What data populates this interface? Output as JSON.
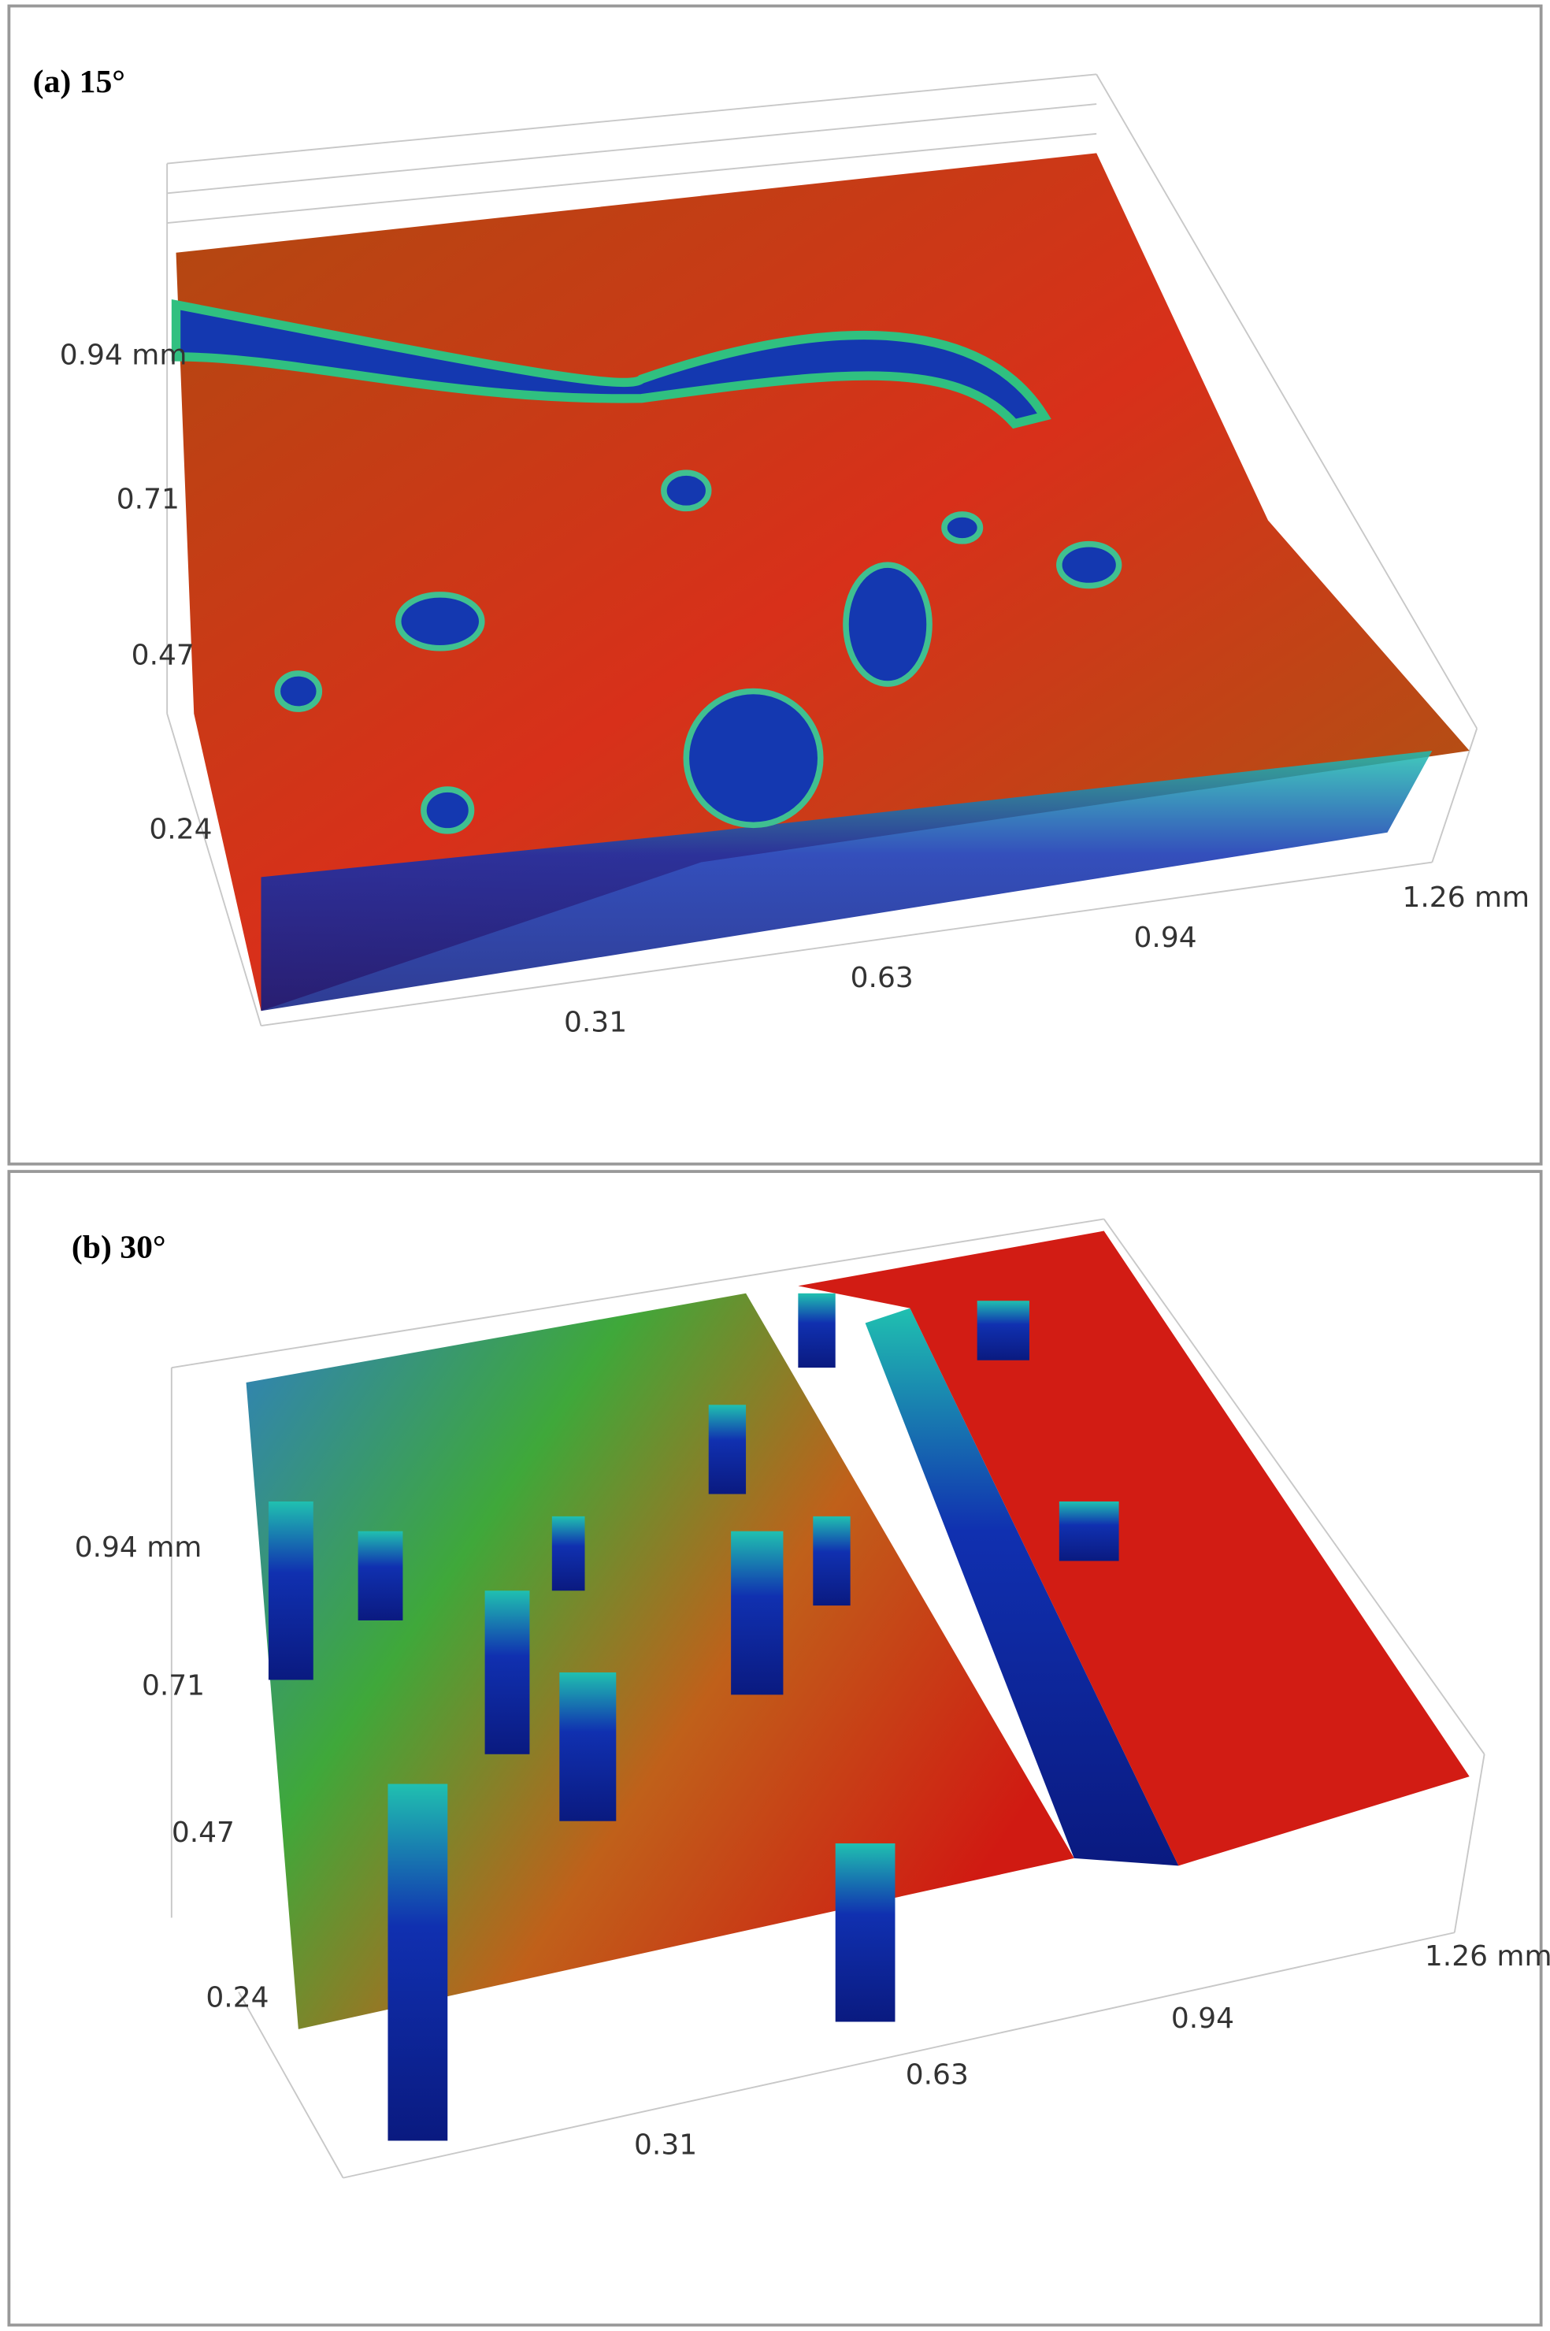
{
  "panels": [
    {
      "label": "(a) 15°",
      "y_ticks": [
        "0.94 mm",
        "0.71",
        "0.47",
        "0.24"
      ],
      "x_ticks": [
        "0.31",
        "0.63",
        "0.94",
        "1.26 mm"
      ]
    },
    {
      "label": "(b) 30°",
      "y_ticks": [
        "0.94 mm",
        "0.71",
        "0.47",
        "0.24"
      ],
      "x_ticks": [
        "0.31",
        "0.63",
        "0.94",
        "1.26 mm"
      ]
    }
  ]
}
